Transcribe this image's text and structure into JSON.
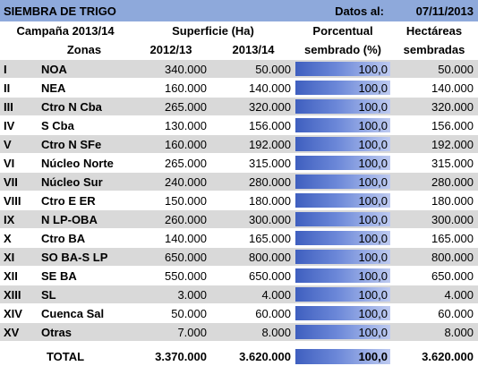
{
  "title_bar": {
    "title": "SIEMBRA DE TRIGO",
    "date_label": "Datos al:",
    "date_value": "07/11/2013"
  },
  "headers": {
    "campaign": "Campaña 2013/14",
    "surface": "Superficie (Ha)",
    "percent_line1": "Porcentual",
    "percent_line2": "sembrado (%)",
    "hectares_line1": "Hectáreas",
    "hectares_line2": "sembradas",
    "zones": "Zonas",
    "year1": "2012/13",
    "year2": "2013/14"
  },
  "rows": [
    {
      "num": "I",
      "zone": "NOA",
      "y1": "340.000",
      "y2": "50.000",
      "pct_label": "100,0",
      "pct": 100,
      "sown": "50.000"
    },
    {
      "num": "II",
      "zone": "NEA",
      "y1": "160.000",
      "y2": "140.000",
      "pct_label": "100,0",
      "pct": 100,
      "sown": "140.000"
    },
    {
      "num": "III",
      "zone": "Ctro N Cba",
      "y1": "265.000",
      "y2": "320.000",
      "pct_label": "100,0",
      "pct": 100,
      "sown": "320.000"
    },
    {
      "num": "IV",
      "zone": "S Cba",
      "y1": "130.000",
      "y2": "156.000",
      "pct_label": "100,0",
      "pct": 100,
      "sown": "156.000"
    },
    {
      "num": "V",
      "zone": "Ctro N SFe",
      "y1": "160.000",
      "y2": "192.000",
      "pct_label": "100,0",
      "pct": 100,
      "sown": "192.000"
    },
    {
      "num": "VI",
      "zone": "Núcleo Norte",
      "y1": "265.000",
      "y2": "315.000",
      "pct_label": "100,0",
      "pct": 100,
      "sown": "315.000"
    },
    {
      "num": "VII",
      "zone": "Núcleo Sur",
      "y1": "240.000",
      "y2": "280.000",
      "pct_label": "100,0",
      "pct": 100,
      "sown": "280.000"
    },
    {
      "num": "VIII",
      "zone": "Ctro E ER",
      "y1": "150.000",
      "y2": "180.000",
      "pct_label": "100,0",
      "pct": 100,
      "sown": "180.000"
    },
    {
      "num": "IX",
      "zone": "N LP-OBA",
      "y1": "260.000",
      "y2": "300.000",
      "pct_label": "100,0",
      "pct": 100,
      "sown": "300.000"
    },
    {
      "num": "X",
      "zone": "Ctro BA",
      "y1": "140.000",
      "y2": "165.000",
      "pct_label": "100,0",
      "pct": 100,
      "sown": "165.000"
    },
    {
      "num": "XI",
      "zone": "SO BA-S LP",
      "y1": "650.000",
      "y2": "800.000",
      "pct_label": "100,0",
      "pct": 100,
      "sown": "800.000"
    },
    {
      "num": "XII",
      "zone": "SE BA",
      "y1": "550.000",
      "y2": "650.000",
      "pct_label": "100,0",
      "pct": 100,
      "sown": "650.000"
    },
    {
      "num": "XIII",
      "zone": "SL",
      "y1": "3.000",
      "y2": "4.000",
      "pct_label": "100,0",
      "pct": 100,
      "sown": "4.000"
    },
    {
      "num": "XIV",
      "zone": "Cuenca Sal",
      "y1": "50.000",
      "y2": "60.000",
      "pct_label": "100,0",
      "pct": 100,
      "sown": "60.000"
    },
    {
      "num": "XV",
      "zone": "Otras",
      "y1": "7.000",
      "y2": "8.000",
      "pct_label": "100,0",
      "pct": 100,
      "sown": "8.000"
    }
  ],
  "total": {
    "label": "TOTAL",
    "y1": "3.370.000",
    "y2": "3.620.000",
    "pct_label": "100,0",
    "pct": 100,
    "sown": "3.620.000"
  },
  "colors": {
    "title_bg": "#8ea9db",
    "header_bg": "#ffffff",
    "row_odd_bg": "#d9d9d9",
    "row_even_bg": "#ffffff",
    "grid": "#ffffff",
    "bar": "#4f6fcc"
  }
}
